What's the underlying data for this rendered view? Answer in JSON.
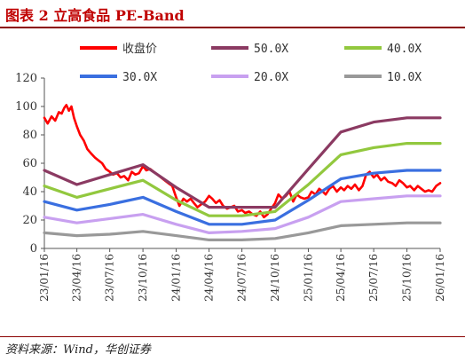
{
  "figure": {
    "title": "图表 2 立高食品 PE-Band",
    "source": "资料来源：Wind，华创证券"
  },
  "chart_data": {
    "type": "line",
    "title": "",
    "xlabel": "",
    "ylabel": "",
    "ylim": [
      0,
      120
    ],
    "y_ticks": [
      0,
      20,
      40,
      60,
      80,
      100,
      120
    ],
    "x_ticks": [
      "23/01/16",
      "23/04/16",
      "23/07/16",
      "23/10/16",
      "24/01/16",
      "24/04/16",
      "24/07/16",
      "24/10/16",
      "25/01/16",
      "25/04/16",
      "25/07/16",
      "25/10/16",
      "26/01/16"
    ],
    "x_range": [
      "2023-01-16",
      "2026-01-16"
    ],
    "legend_position": "top",
    "grid": false,
    "series": [
      {
        "name": "收盘价",
        "color": "#ff0000",
        "x": [
          "2023-01-16",
          "2023-01-25",
          "2023-02-05",
          "2023-02-15",
          "2023-02-25",
          "2023-03-05",
          "2023-03-12",
          "2023-03-18",
          "2023-03-25",
          "2023-04-01",
          "2023-04-08",
          "2023-04-16",
          "2023-04-25",
          "2023-05-05",
          "2023-05-15",
          "2023-05-25",
          "2023-06-05",
          "2023-06-15",
          "2023-06-25",
          "2023-07-05",
          "2023-07-16",
          "2023-07-25",
          "2023-08-05",
          "2023-08-15",
          "2023-08-25",
          "2023-09-05",
          "2023-09-15",
          "2023-09-25",
          "2023-10-05",
          "2023-10-16",
          "2023-10-25",
          "2023-11-05",
          "2023-11-15",
          "2023-11-25",
          "2023-12-05",
          "2023-12-15",
          "2023-12-25",
          "2024-01-05",
          "2024-01-16",
          "2024-01-25",
          "2024-02-05",
          "2024-02-15",
          "2024-02-25",
          "2024-03-05",
          "2024-03-15",
          "2024-03-25",
          "2024-04-05",
          "2024-04-16",
          "2024-04-25",
          "2024-05-05",
          "2024-05-15",
          "2024-05-25",
          "2024-06-05",
          "2024-06-15",
          "2024-06-25",
          "2024-07-05",
          "2024-07-16",
          "2024-07-25",
          "2024-08-05",
          "2024-08-15",
          "2024-08-25",
          "2024-09-05",
          "2024-09-15",
          "2024-09-25",
          "2024-10-05",
          "2024-10-16",
          "2024-10-25",
          "2024-11-05",
          "2024-11-15",
          "2024-11-25",
          "2024-12-05",
          "2024-12-15",
          "2024-12-25",
          "2025-01-05",
          "2025-01-16",
          "2025-01-25",
          "2025-02-05",
          "2025-02-15",
          "2025-02-25",
          "2025-03-05",
          "2025-03-15",
          "2025-03-25",
          "2025-04-05",
          "2025-04-16",
          "2025-04-25",
          "2025-05-05",
          "2025-05-15",
          "2025-05-25",
          "2025-06-05",
          "2025-06-15",
          "2025-06-25",
          "2025-07-05",
          "2025-07-16",
          "2025-07-25",
          "2025-08-05",
          "2025-08-15",
          "2025-08-25",
          "2025-09-05",
          "2025-09-15",
          "2025-09-25",
          "2025-10-05",
          "2025-10-16",
          "2025-10-25",
          "2025-11-05",
          "2025-11-15",
          "2025-11-25",
          "2025-12-05",
          "2025-12-15",
          "2025-12-25",
          "2026-01-05",
          "2026-01-16"
        ],
        "values": [
          92,
          88,
          93,
          90,
          96,
          95,
          99,
          101,
          97,
          100,
          92,
          86,
          80,
          76,
          70,
          67,
          64,
          62,
          60,
          56,
          54,
          52,
          53,
          50,
          51,
          48,
          54,
          52,
          53,
          58,
          55,
          56,
          54,
          52,
          50,
          48,
          46,
          44,
          36,
          30,
          35,
          33,
          35,
          32,
          29,
          31,
          33,
          37,
          35,
          32,
          34,
          30,
          28,
          29,
          30,
          26,
          27,
          25,
          26,
          24,
          23,
          26,
          22,
          24,
          28,
          32,
          38,
          35,
          37,
          40,
          33,
          38,
          36,
          35,
          36,
          40,
          38,
          42,
          40,
          38,
          42,
          44,
          40,
          43,
          41,
          44,
          42,
          45,
          41,
          44,
          52,
          54,
          50,
          52,
          48,
          50,
          47,
          46,
          44,
          48,
          46,
          43,
          44,
          41,
          44,
          42,
          40,
          41,
          40,
          44,
          46
        ]
      },
      {
        "name": "50.0X",
        "color": "#8b3a62",
        "x": [
          "2023-01-16",
          "2023-04-16",
          "2023-07-16",
          "2023-10-16",
          "2024-01-16",
          "2024-04-16",
          "2024-07-16",
          "2024-10-16",
          "2025-01-16",
          "2025-04-16",
          "2025-07-16",
          "2025-10-16",
          "2026-01-16"
        ],
        "values": [
          55,
          45,
          52,
          59,
          43,
          29,
          29,
          29,
          56,
          82,
          89,
          92,
          92
        ]
      },
      {
        "name": "40.0X",
        "color": "#92c83e",
        "x": [
          "2023-01-16",
          "2023-04-16",
          "2023-07-16",
          "2023-10-16",
          "2024-01-16",
          "2024-04-16",
          "2024-07-16",
          "2024-10-16",
          "2025-01-16",
          "2025-04-16",
          "2025-07-16",
          "2025-10-16",
          "2026-01-16"
        ],
        "values": [
          44,
          36,
          42,
          48,
          34,
          23,
          23,
          26,
          45,
          66,
          71,
          74,
          74
        ]
      },
      {
        "name": "30.0X",
        "color": "#3a6fe0",
        "x": [
          "2023-01-16",
          "2023-04-16",
          "2023-07-16",
          "2023-10-16",
          "2024-01-16",
          "2024-04-16",
          "2024-07-16",
          "2024-10-16",
          "2025-01-16",
          "2025-04-16",
          "2025-07-16",
          "2025-10-16",
          "2026-01-16"
        ],
        "values": [
          33,
          27,
          31,
          36,
          26,
          17,
          17,
          20,
          34,
          49,
          53,
          55,
          55
        ]
      },
      {
        "name": "20.0X",
        "color": "#c8a0f0",
        "x": [
          "2023-01-16",
          "2023-04-16",
          "2023-07-16",
          "2023-10-16",
          "2024-01-16",
          "2024-04-16",
          "2024-07-16",
          "2024-10-16",
          "2025-01-16",
          "2025-04-16",
          "2025-07-16",
          "2025-10-16",
          "2026-01-16"
        ],
        "values": [
          22,
          18,
          21,
          24,
          17,
          11,
          12,
          14,
          22,
          33,
          35,
          37,
          37
        ]
      },
      {
        "name": "10.0X",
        "color": "#999999",
        "x": [
          "2023-01-16",
          "2023-04-16",
          "2023-07-16",
          "2023-10-16",
          "2024-01-16",
          "2024-04-16",
          "2024-07-16",
          "2024-10-16",
          "2025-01-16",
          "2025-04-16",
          "2025-07-16",
          "2025-10-16",
          "2026-01-16"
        ],
        "values": [
          11,
          9,
          10,
          12,
          9,
          6,
          6,
          7,
          11,
          16,
          17,
          18,
          18
        ]
      }
    ]
  }
}
